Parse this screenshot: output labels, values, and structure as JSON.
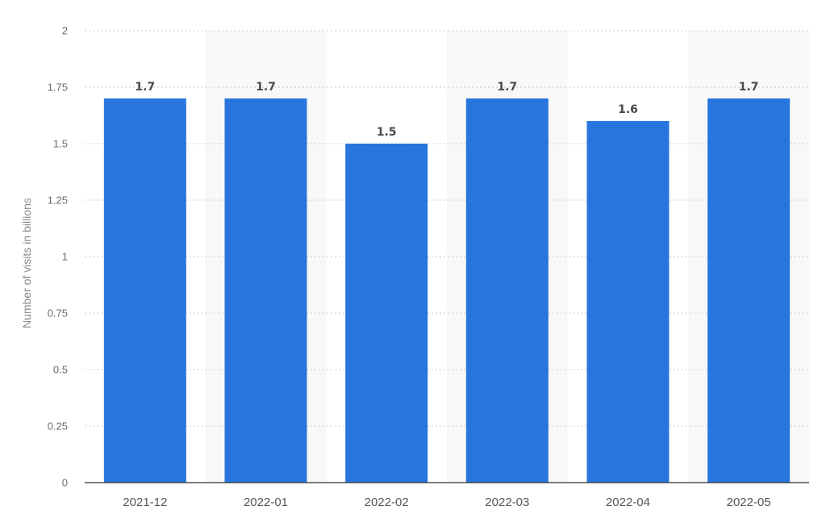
{
  "chart_data": {
    "type": "bar",
    "categories": [
      "2021-12",
      "2022-01",
      "2022-02",
      "2022-03",
      "2022-04",
      "2022-05"
    ],
    "values": [
      1.7,
      1.7,
      1.5,
      1.7,
      1.6,
      1.7
    ],
    "data_labels": [
      "1.7",
      "1.7",
      "1.5",
      "1.7",
      "1.6",
      "1.7"
    ],
    "title": "",
    "xlabel": "",
    "ylabel": "Number of visits in billions",
    "ylim": [
      0,
      2
    ],
    "yticks": [
      0,
      0.25,
      0.5,
      0.75,
      1,
      1.25,
      1.5,
      1.75,
      2
    ],
    "ytick_labels": [
      "0",
      "0.25",
      "0.5",
      "0.75",
      "1",
      "1.25",
      "1.5",
      "1.75",
      "2"
    ],
    "grid": true,
    "legend": "none",
    "bar_color": "#2876dd",
    "alternating_band_color": "#f8f8f9"
  }
}
